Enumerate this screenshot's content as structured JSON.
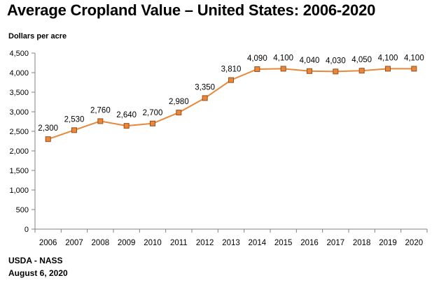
{
  "chart_data": {
    "type": "line",
    "title": "Average Cropland Value – United States: 2006-2020",
    "ylabel": "Dollars per acre",
    "xlabel": "",
    "categories": [
      "2006",
      "2007",
      "2008",
      "2009",
      "2010",
      "2011",
      "2012",
      "2013",
      "2014",
      "2015",
      "2016",
      "2017",
      "2018",
      "2019",
      "2020"
    ],
    "series": [
      {
        "values": [
          2300,
          2530,
          2760,
          2640,
          2700,
          2980,
          3350,
          3810,
          4090,
          4100,
          4040,
          4030,
          4050,
          4100,
          4100
        ]
      }
    ],
    "data_labels": [
      "2,300",
      "2,530",
      "2,760",
      "2,640",
      "2,700",
      "2,980",
      "3,350",
      "3,810",
      "4,090",
      "4,100",
      "4,040",
      "4,030",
      "4,050",
      "4,100",
      "4,100"
    ],
    "ylim": [
      0,
      4500
    ],
    "yticks": [
      0,
      500,
      1000,
      1500,
      2000,
      2500,
      3000,
      3500,
      4000,
      4500
    ],
    "ytick_labels": [
      "0",
      "500",
      "1,000",
      "1,500",
      "2,000",
      "2,500",
      "3,000",
      "3,500",
      "4,000",
      "4,500"
    ],
    "grid": false,
    "line_color": "#E8883A",
    "marker_color": "#E8883A",
    "marker_edge_color": "#9A4E1C",
    "axis_color": "#808080"
  },
  "footer": {
    "source": "USDA - NASS",
    "date": "August 6, 2020"
  }
}
